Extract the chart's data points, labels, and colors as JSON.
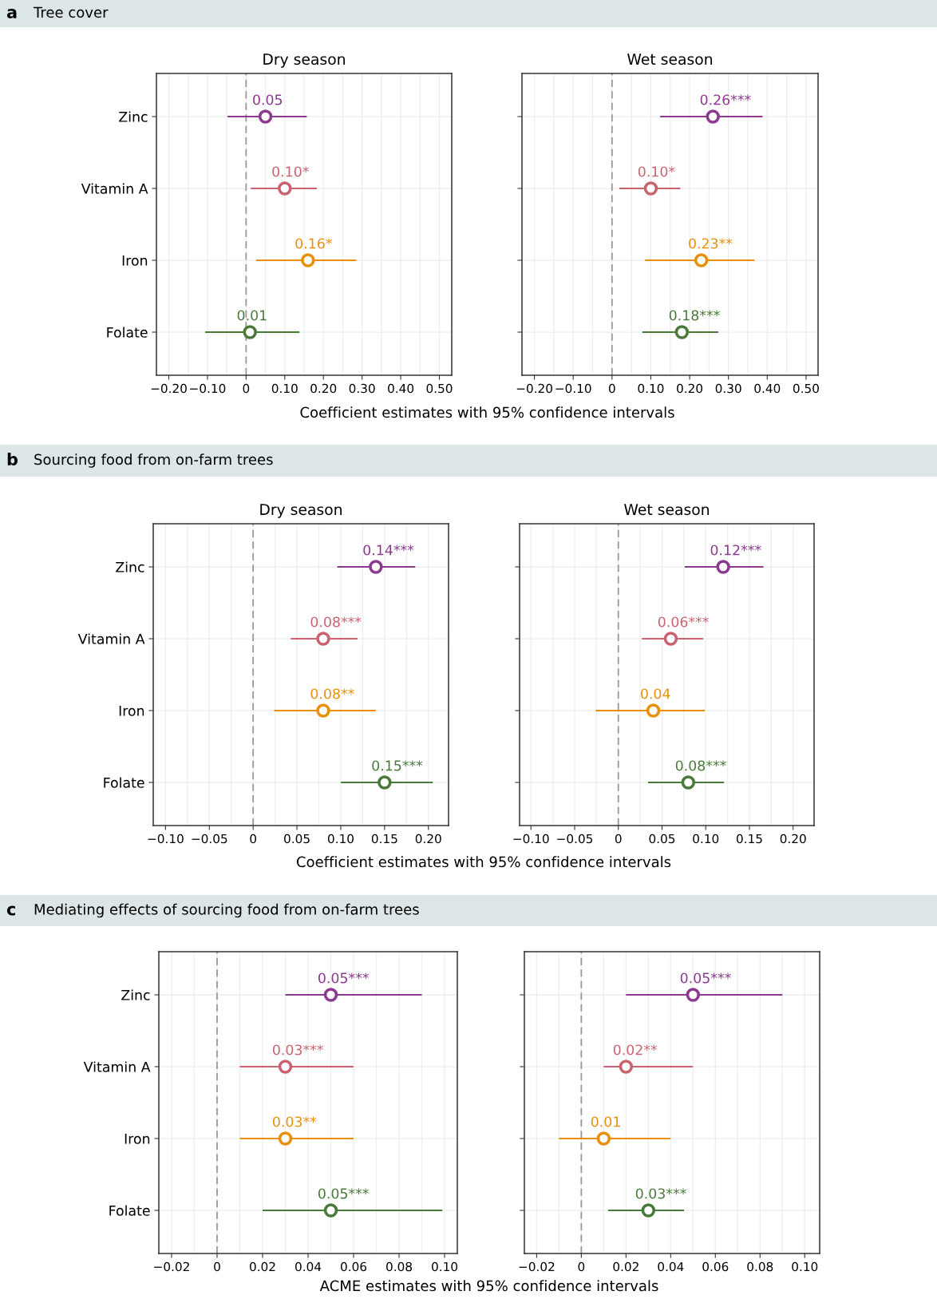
{
  "chart_data": [
    {
      "type": "scatter",
      "orientation": "horizontal",
      "title": "Dry season",
      "subtitle": "Tree cover",
      "annotations": [
        "a"
      ],
      "xlabel": "Coefficient estimates with 95% confidence intervals",
      "categories": [
        "Zinc",
        "Vitamin A",
        "Iron",
        "Folate"
      ],
      "values": [
        0.05,
        0.1,
        0.16,
        0.01
      ],
      "errors": [
        [
          -0.048,
          0.157
        ],
        [
          0.012,
          0.183
        ],
        [
          0.026,
          0.285
        ],
        [
          -0.106,
          0.138
        ]
      ],
      "value_labels": [
        "0.05",
        "0.10*",
        "0.16*",
        "0.01"
      ],
      "colors": [
        "#8b3a8f",
        "#c9636f",
        "#e8900c",
        "#4a7a3a"
      ],
      "marker": "circle",
      "grid": true,
      "xlim": [
        -0.232,
        0.532
      ],
      "xticks": [
        {
          "value": -0.2,
          "label": "−0.20"
        },
        {
          "value": -0.1,
          "label": "−0.10"
        },
        {
          "value": 0,
          "label": "0"
        },
        {
          "value": 0.1,
          "label": "0.10"
        },
        {
          "value": 0.2,
          "label": "0.20"
        },
        {
          "value": 0.3,
          "label": "0.30"
        },
        {
          "value": 0.4,
          "label": "0.40"
        },
        {
          "value": 0.5,
          "label": "0.50"
        }
      ],
      "ref_lines": [
        {
          "axis": "x",
          "value": 0,
          "color": "#999999",
          "line_style": "dashed"
        }
      ]
    },
    {
      "type": "scatter",
      "orientation": "horizontal",
      "title": "Wet season",
      "tick_labels": "x",
      "categories": [
        null,
        null,
        null,
        null
      ],
      "values": [
        0.26,
        0.1,
        0.23,
        0.18
      ],
      "errors": [
        [
          0.124,
          0.388
        ],
        [
          0.019,
          0.176
        ],
        [
          0.085,
          0.367
        ],
        [
          0.078,
          0.274
        ]
      ],
      "value_labels": [
        "0.26***",
        "0.10*",
        "0.23**",
        "0.18***"
      ],
      "colors": [
        "#8b3a8f",
        "#c9636f",
        "#e8900c",
        "#4a7a3a"
      ],
      "marker": "circle",
      "grid": true,
      "xlim": [
        -0.232,
        0.531
      ],
      "xticks": [
        {
          "value": -0.2,
          "label": "−0.20"
        },
        {
          "value": -0.1,
          "label": "−0.10"
        },
        {
          "value": 0,
          "label": "0"
        },
        {
          "value": 0.1,
          "label": "0.10"
        },
        {
          "value": 0.2,
          "label": "0.20"
        },
        {
          "value": 0.3,
          "label": "0.30"
        },
        {
          "value": 0.4,
          "label": "0.40"
        },
        {
          "value": 0.5,
          "label": "0.50"
        }
      ],
      "ref_lines": [
        {
          "axis": "x",
          "value": 0,
          "color": "#999999",
          "line_style": "dashed"
        }
      ]
    },
    {
      "type": "scatter",
      "orientation": "horizontal",
      "title": "Dry season",
      "subtitle": "Sourcing food from on-farm trees",
      "annotations": [
        "b"
      ],
      "xlabel": "Coefficient estimates with 95% confidence intervals",
      "categories": [
        "Zinc",
        "Vitamin A",
        "Iron",
        "Folate"
      ],
      "values": [
        0.14,
        0.08,
        0.08,
        0.15
      ],
      "errors": [
        [
          0.096,
          0.185
        ],
        [
          0.043,
          0.119
        ],
        [
          0.024,
          0.14
        ],
        [
          0.1,
          0.205
        ]
      ],
      "value_labels": [
        "0.14***",
        "0.08***",
        "0.08**",
        "0.15***"
      ],
      "colors": [
        "#8b3a8f",
        "#c9636f",
        "#e8900c",
        "#4a7a3a"
      ],
      "marker": "circle",
      "grid": true,
      "xlim": [
        -0.114,
        0.223
      ],
      "xticks": [
        {
          "value": -0.1,
          "label": "−0.10"
        },
        {
          "value": -0.05,
          "label": "−0.05"
        },
        {
          "value": 0,
          "label": "0"
        },
        {
          "value": 0.05,
          "label": "0.05"
        },
        {
          "value": 0.1,
          "label": "0.10"
        },
        {
          "value": 0.15,
          "label": "0.15"
        },
        {
          "value": 0.2,
          "label": "0.20"
        }
      ],
      "ref_lines": [
        {
          "axis": "x",
          "value": 0,
          "color": "#999999",
          "line_style": "dashed"
        }
      ]
    },
    {
      "type": "scatter",
      "orientation": "horizontal",
      "title": "Wet season",
      "tick_labels": "x",
      "categories": [
        null,
        null,
        null,
        null
      ],
      "values": [
        0.12,
        0.06,
        0.04,
        0.08
      ],
      "errors": [
        [
          0.076,
          0.166
        ],
        [
          0.027,
          0.097
        ],
        [
          -0.026,
          0.099
        ],
        [
          0.034,
          0.121
        ]
      ],
      "value_labels": [
        "0.12***",
        "0.06***",
        "0.04",
        "0.08***"
      ],
      "colors": [
        "#8b3a8f",
        "#c9636f",
        "#e8900c",
        "#4a7a3a"
      ],
      "marker": "circle",
      "grid": true,
      "xlim": [
        -0.113,
        0.224
      ],
      "xticks": [
        {
          "value": -0.1,
          "label": "−0.10"
        },
        {
          "value": -0.05,
          "label": "−0.05"
        },
        {
          "value": 0,
          "label": "0"
        },
        {
          "value": 0.05,
          "label": "0.05"
        },
        {
          "value": 0.1,
          "label": "0.10"
        },
        {
          "value": 0.15,
          "label": "0.15"
        },
        {
          "value": 0.2,
          "label": "0.20"
        }
      ],
      "ref_lines": [
        {
          "axis": "x",
          "value": 0,
          "color": "#999999",
          "line_style": "dashed"
        }
      ]
    },
    {
      "type": "scatter",
      "orientation": "horizontal",
      "subtitle": "Mediating effects of sourcing food from on-farm trees",
      "annotations": [
        "c"
      ],
      "xlabel": "ACME estimates with 95% confidence intervals",
      "categories": [
        "Zinc",
        "Vitamin A",
        "Iron",
        "Folate"
      ],
      "values": [
        0.05,
        0.03,
        0.03,
        0.05
      ],
      "errors": [
        [
          0.03,
          0.09
        ],
        [
          0.01,
          0.06
        ],
        [
          0.01,
          0.06
        ],
        [
          0.02,
          0.099
        ]
      ],
      "value_labels": [
        "0.05***",
        "0.03***",
        "0.03**",
        "0.05***"
      ],
      "colors": [
        "#8b3a8f",
        "#c9636f",
        "#e8900c",
        "#4a7a3a"
      ],
      "marker": "circle",
      "grid": true,
      "xlim": [
        -0.0256,
        0.1056
      ],
      "xticks": [
        {
          "value": -0.02,
          "label": "−0.02"
        },
        {
          "value": 0,
          "label": "0"
        },
        {
          "value": 0.02,
          "label": "0.02"
        },
        {
          "value": 0.04,
          "label": "0.04"
        },
        {
          "value": 0.06,
          "label": "0.06"
        },
        {
          "value": 0.08,
          "label": "0.08"
        },
        {
          "value": 0.1,
          "label": "0.10"
        }
      ],
      "ref_lines": [
        {
          "axis": "x",
          "value": 0,
          "color": "#999999",
          "line_style": "dashed"
        }
      ]
    },
    {
      "type": "scatter",
      "orientation": "horizontal",
      "tick_labels": "x",
      "categories": [
        null,
        null,
        null,
        null
      ],
      "values": [
        0.05,
        0.02,
        0.01,
        0.03
      ],
      "errors": [
        [
          0.02,
          0.09
        ],
        [
          0.01,
          0.05
        ],
        [
          -0.01,
          0.04
        ],
        [
          0.012,
          0.046
        ]
      ],
      "value_labels": [
        "0.05***",
        "0.02**",
        "0.01",
        "0.03***"
      ],
      "colors": [
        "#8b3a8f",
        "#c9636f",
        "#e8900c",
        "#4a7a3a"
      ],
      "marker": "circle",
      "grid": true,
      "xlim": [
        -0.0255,
        0.1067
      ],
      "xticks": [
        {
          "value": -0.02,
          "label": "−0.02"
        },
        {
          "value": 0,
          "label": "0"
        },
        {
          "value": 0.02,
          "label": "0.02"
        },
        {
          "value": 0.04,
          "label": "0.04"
        },
        {
          "value": 0.06,
          "label": "0.06"
        },
        {
          "value": 0.08,
          "label": "0.08"
        },
        {
          "value": 0.1,
          "label": "0.10"
        }
      ],
      "ref_lines": [
        {
          "axis": "x",
          "value": 0,
          "color": "#999999",
          "line_style": "dashed"
        }
      ]
    }
  ]
}
